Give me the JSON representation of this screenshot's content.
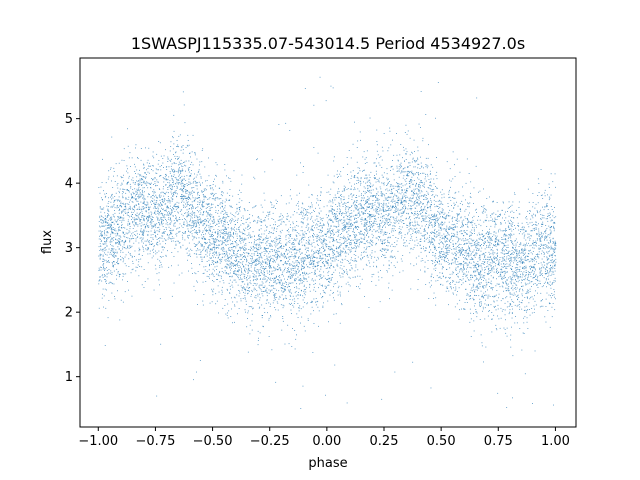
{
  "chart_data": {
    "type": "scatter",
    "title": "1SWASPJ115335.07-543014.5 Period 4534927.0s",
    "xlabel": "phase",
    "ylabel": "flux",
    "xlim": [
      -1.08,
      1.09
    ],
    "ylim": [
      0.22,
      5.94
    ],
    "xticks": [
      -1.0,
      -0.75,
      -0.5,
      -0.25,
      0.0,
      0.25,
      0.5,
      0.75,
      1.0
    ],
    "xtick_labels": [
      "−1.00",
      "−0.75",
      "−0.50",
      "−0.25",
      "0.00",
      "0.25",
      "0.50",
      "0.75",
      "1.00"
    ],
    "yticks": [
      1,
      2,
      3,
      4,
      5
    ],
    "ytick_labels": [
      "1",
      "2",
      "3",
      "4",
      "5"
    ],
    "grid": false,
    "legend": "none",
    "point_color": "#1f77b4",
    "series": [
      {
        "phase_flux_trend": [
          [
            -1.0,
            3.0
          ],
          [
            -0.95,
            3.2
          ],
          [
            -0.9,
            3.4
          ],
          [
            -0.85,
            3.55
          ],
          [
            -0.8,
            3.6
          ],
          [
            -0.75,
            3.5
          ],
          [
            -0.7,
            3.65
          ],
          [
            -0.65,
            3.85
          ],
          [
            -0.6,
            3.7
          ],
          [
            -0.55,
            3.4
          ],
          [
            -0.5,
            3.2
          ],
          [
            -0.45,
            3.1
          ],
          [
            -0.4,
            2.95
          ],
          [
            -0.35,
            2.8
          ],
          [
            -0.3,
            2.8
          ],
          [
            -0.25,
            2.85
          ],
          [
            -0.2,
            2.8
          ],
          [
            -0.15,
            2.75
          ],
          [
            -0.1,
            2.9
          ],
          [
            -0.05,
            3.0
          ],
          [
            0.0,
            3.0
          ],
          [
            0.05,
            3.2
          ],
          [
            0.1,
            3.4
          ],
          [
            0.15,
            3.55
          ],
          [
            0.2,
            3.6
          ],
          [
            0.25,
            3.5
          ],
          [
            0.3,
            3.65
          ],
          [
            0.35,
            3.85
          ],
          [
            0.4,
            3.7
          ],
          [
            0.45,
            3.4
          ],
          [
            0.5,
            3.2
          ],
          [
            0.55,
            3.1
          ],
          [
            0.6,
            2.95
          ],
          [
            0.65,
            2.8
          ],
          [
            0.7,
            2.8
          ],
          [
            0.75,
            2.85
          ],
          [
            0.8,
            2.8
          ],
          [
            0.85,
            2.75
          ],
          [
            0.9,
            2.9
          ],
          [
            0.95,
            3.0
          ],
          [
            1.0,
            3.0
          ]
        ],
        "scatter_sd": 0.45,
        "outlier_range": [
          0.5,
          5.7
        ],
        "n_points": 9000
      }
    ]
  }
}
